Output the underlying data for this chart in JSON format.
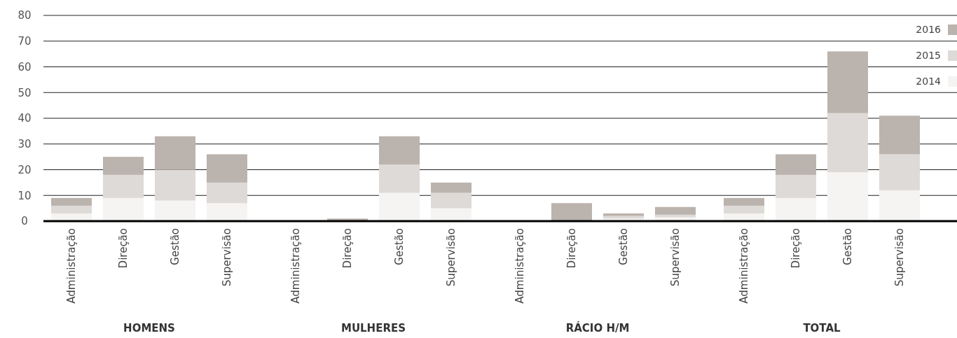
{
  "chart_data": {
    "type": "bar",
    "stacked": true,
    "categories": [
      "Administração",
      "Direção",
      "Gestão",
      "Supervisão",
      "Administração",
      "Direção",
      "Gestão",
      "Supervisão",
      "Administração",
      "Direção",
      "Gestão",
      "Supervisão",
      "Administração",
      "Direção",
      "Gestão",
      "Supervisão"
    ],
    "series": [
      {
        "name": "2014",
        "color": "#f5f4f2",
        "values": [
          3,
          9,
          8,
          7,
          0,
          0,
          11,
          5,
          0,
          0,
          1,
          1.5,
          3,
          9,
          19,
          12
        ]
      },
      {
        "name": "2015",
        "color": "#dedad7",
        "values": [
          3,
          9,
          12,
          8,
          0,
          0,
          11,
          6,
          0,
          0,
          1,
          1,
          3,
          9,
          23,
          14
        ]
      },
      {
        "name": "2016",
        "color": "#bbb3ad",
        "values": [
          3,
          7,
          13,
          11,
          0,
          1,
          11,
          4,
          0,
          7,
          1,
          3,
          3,
          8,
          24,
          15
        ]
      }
    ],
    "annotations": [
      "HOMENS",
      "MULHERES",
      "RÁCIO H/M",
      "TOTAL"
    ],
    "ylim": [
      0,
      80
    ],
    "yticks": [
      0,
      10,
      20,
      30,
      40,
      50,
      60,
      70,
      80
    ],
    "grid": "y",
    "legend": "top right"
  }
}
